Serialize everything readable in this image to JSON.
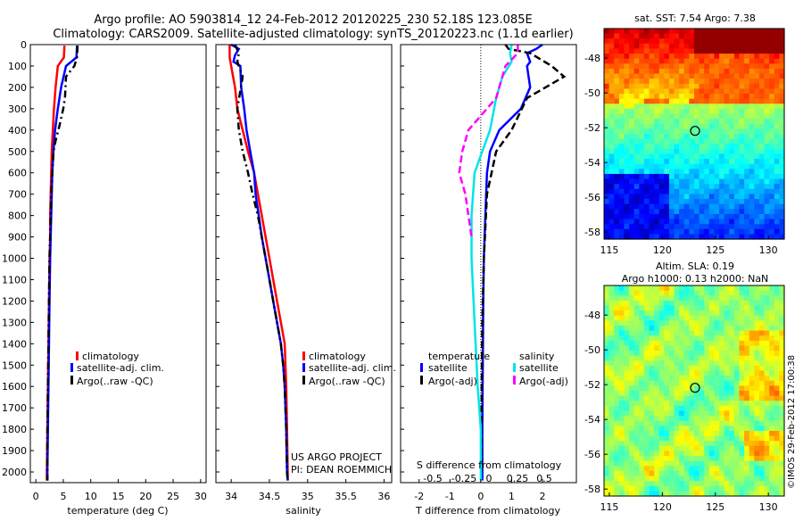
{
  "title_line1": "Argo profile: AO 5903814_12 24-Feb-2012 20120225_230 52.18S 123.085E",
  "title_line2": "Climatology: CARS2009. Satellite-adjusted climatology: synTS_20120223.nc (1.1d earlier)",
  "credit_line1": "US ARGO PROJECT",
  "credit_line2": "PI: DEAN ROEMMICH",
  "imos_stamp": "©IMOS 29-Feb-2012 17:00:38",
  "colors": {
    "climatology": "#ff0000",
    "satellite": "#0000ff",
    "argo": "#000000",
    "sat_salinity": "#00e5e5",
    "argo_salinity": "#ff00ff"
  },
  "chart_data": [
    {
      "type": "line",
      "xlabel": "temperature (deg C)",
      "ylabel": "",
      "xlim": [
        -1,
        31
      ],
      "ylim": [
        2050,
        0
      ],
      "xticks": [
        "0",
        "5",
        "10",
        "15",
        "20",
        "25",
        "30"
      ],
      "xtick_values": [
        0,
        5,
        10,
        15,
        20,
        25,
        30
      ],
      "yticks": [
        "0",
        "100",
        "200",
        "300",
        "400",
        "500",
        "600",
        "700",
        "800",
        "900",
        "1000",
        "1100",
        "1200",
        "1300",
        "1400",
        "1500",
        "1600",
        "1700",
        "1800",
        "1900",
        "2000"
      ],
      "legend": [
        "climatology",
        "satellite-adj. clim.",
        "Argo(..raw -QC)"
      ],
      "series": [
        {
          "name": "climatology",
          "color": "#ff0000",
          "dash": "",
          "points": [
            [
              5.2,
              5
            ],
            [
              5.1,
              60
            ],
            [
              4.0,
              100
            ],
            [
              3.6,
              200
            ],
            [
              3.3,
              300
            ],
            [
              3.1,
              400
            ],
            [
              2.9,
              500
            ],
            [
              2.8,
              600
            ],
            [
              2.7,
              700
            ],
            [
              2.6,
              800
            ],
            [
              2.6,
              900
            ],
            [
              2.5,
              1000
            ],
            [
              2.4,
              1200
            ],
            [
              2.3,
              1400
            ],
            [
              2.2,
              1600
            ],
            [
              2.1,
              1800
            ],
            [
              2.0,
              2000
            ],
            [
              2.0,
              2040
            ]
          ]
        },
        {
          "name": "satellite-adj. clim.",
          "color": "#0000ff",
          "dash": "",
          "points": [
            [
              7.5,
              5
            ],
            [
              7.4,
              60
            ],
            [
              5.5,
              100
            ],
            [
              4.6,
              200
            ],
            [
              4.0,
              300
            ],
            [
              3.5,
              400
            ],
            [
              3.2,
              500
            ],
            [
              3.0,
              600
            ],
            [
              2.9,
              700
            ],
            [
              2.8,
              800
            ],
            [
              2.7,
              900
            ],
            [
              2.6,
              1000
            ],
            [
              2.5,
              1200
            ],
            [
              2.4,
              1400
            ],
            [
              2.3,
              1600
            ],
            [
              2.2,
              1800
            ],
            [
              2.1,
              2000
            ],
            [
              2.1,
              2040
            ]
          ]
        },
        {
          "name": "Argo(..raw -QC)",
          "color": "#000000",
          "dash": "8 4 2 4",
          "points": [
            [
              7.6,
              5
            ],
            [
              7.5,
              60
            ],
            [
              7.0,
              100
            ],
            [
              5.5,
              150
            ],
            [
              5.3,
              250
            ],
            [
              5.0,
              300
            ],
            [
              4.3,
              380
            ],
            [
              3.6,
              450
            ],
            [
              3.2,
              500
            ],
            [
              3.0,
              600
            ],
            [
              2.8,
              700
            ],
            [
              2.7,
              800
            ],
            [
              2.6,
              900
            ],
            [
              2.5,
              1000
            ],
            [
              2.4,
              1200
            ],
            [
              2.3,
              1400
            ],
            [
              2.2,
              1600
            ],
            [
              2.1,
              1800
            ],
            [
              2.1,
              2000
            ],
            [
              2.1,
              2040
            ]
          ]
        }
      ]
    },
    {
      "type": "line",
      "xlabel": "salinity",
      "ylabel": "",
      "xlim": [
        33.8,
        36.1
      ],
      "ylim": [
        2050,
        0
      ],
      "xticks": [
        "34",
        "34.5",
        "35",
        "35.5",
        "36"
      ],
      "xtick_values": [
        34,
        34.5,
        35,
        35.5,
        36
      ],
      "legend": [
        "climatology",
        "satellite-adj. clim.",
        "Argo(..raw -QC)"
      ],
      "series": [
        {
          "name": "climatology",
          "color": "#ff0000",
          "dash": "",
          "points": [
            [
              33.98,
              0
            ],
            [
              33.98,
              60
            ],
            [
              34.0,
              100
            ],
            [
              34.05,
              200
            ],
            [
              34.08,
              300
            ],
            [
              34.15,
              400
            ],
            [
              34.22,
              500
            ],
            [
              34.3,
              600
            ],
            [
              34.35,
              700
            ],
            [
              34.4,
              800
            ],
            [
              34.45,
              900
            ],
            [
              34.5,
              1000
            ],
            [
              34.55,
              1100
            ],
            [
              34.6,
              1200
            ],
            [
              34.65,
              1300
            ],
            [
              34.7,
              1400
            ],
            [
              34.72,
              1600
            ],
            [
              34.73,
              1800
            ],
            [
              34.74,
              2000
            ],
            [
              34.74,
              2040
            ]
          ]
        },
        {
          "name": "satellite-adj. clim.",
          "color": "#0000ff",
          "dash": "",
          "points": [
            [
              34.0,
              0
            ],
            [
              34.1,
              20
            ],
            [
              34.05,
              50
            ],
            [
              34.03,
              80
            ],
            [
              34.12,
              100
            ],
            [
              34.13,
              200
            ],
            [
              34.17,
              300
            ],
            [
              34.2,
              400
            ],
            [
              34.25,
              500
            ],
            [
              34.3,
              600
            ],
            [
              34.32,
              700
            ],
            [
              34.36,
              800
            ],
            [
              34.4,
              900
            ],
            [
              34.45,
              1000
            ],
            [
              34.5,
              1100
            ],
            [
              34.55,
              1200
            ],
            [
              34.6,
              1300
            ],
            [
              34.65,
              1400
            ],
            [
              34.68,
              1500
            ],
            [
              34.7,
              1600
            ],
            [
              34.72,
              1800
            ],
            [
              34.73,
              2000
            ],
            [
              34.74,
              2040
            ]
          ]
        },
        {
          "name": "Argo(..raw -QC)",
          "color": "#000000",
          "dash": "8 4 2 4",
          "points": [
            [
              34.05,
              0
            ],
            [
              34.1,
              40
            ],
            [
              34.08,
              80
            ],
            [
              34.15,
              150
            ],
            [
              34.08,
              300
            ],
            [
              34.1,
              400
            ],
            [
              34.15,
              500
            ],
            [
              34.22,
              600
            ],
            [
              34.28,
              700
            ],
            [
              34.35,
              800
            ],
            [
              34.4,
              900
            ],
            [
              34.45,
              1000
            ],
            [
              34.5,
              1100
            ],
            [
              34.55,
              1200
            ],
            [
              34.6,
              1300
            ],
            [
              34.65,
              1400
            ],
            [
              34.68,
              1500
            ],
            [
              34.7,
              1600
            ],
            [
              34.72,
              1800
            ],
            [
              34.73,
              2000
            ],
            [
              34.74,
              2040
            ]
          ]
        }
      ]
    },
    {
      "type": "line",
      "xlabel": "T difference from climatology",
      "xlabel2": "S difference from climatology",
      "xlim": [
        -2.6,
        3.1
      ],
      "ylim": [
        2050,
        0
      ],
      "xticks": [
        "-2",
        "-1",
        "0",
        "1",
        "2"
      ],
      "xtick_values": [
        -2,
        -1,
        0,
        1,
        2
      ],
      "xticks2": [
        "-0.5",
        "-0.25",
        "0",
        "0.25",
        "0.5"
      ],
      "legend_headers": [
        "temperature",
        "salinity"
      ],
      "legend": [
        "satellite",
        "Argo(-adj)",
        "satellite",
        "Argo(-adj)"
      ],
      "series": [
        {
          "name": "satellite",
          "group": "temperature",
          "color": "#0000ff",
          "dash": "",
          "points": [
            [
              2.0,
              0
            ],
            [
              1.8,
              20
            ],
            [
              1.5,
              40
            ],
            [
              1.6,
              80
            ],
            [
              1.5,
              100
            ],
            [
              1.6,
              200
            ],
            [
              1.3,
              300
            ],
            [
              0.6,
              400
            ],
            [
              0.3,
              500
            ],
            [
              0.2,
              600
            ],
            [
              0.15,
              800
            ],
            [
              0.1,
              1000
            ],
            [
              0.08,
              1200
            ],
            [
              0.07,
              1400
            ],
            [
              0.06,
              1600
            ],
            [
              0.05,
              1800
            ],
            [
              0.05,
              2000
            ],
            [
              0.05,
              2040
            ]
          ]
        },
        {
          "name": "Argo(-adj)",
          "group": "temperature",
          "color": "#000000",
          "dash": "8 4",
          "points": [
            [
              0.8,
              0
            ],
            [
              0.9,
              20
            ],
            [
              1.6,
              40
            ],
            [
              2.3,
              100
            ],
            [
              2.7,
              150
            ],
            [
              1.5,
              250
            ],
            [
              1.0,
              400
            ],
            [
              0.5,
              500
            ],
            [
              0.2,
              700
            ],
            [
              0.1,
              1000
            ],
            [
              0.05,
              1300
            ],
            [
              0.03,
              1600
            ],
            [
              0.02,
              2000
            ]
          ]
        },
        {
          "name": "satellite",
          "group": "salinity",
          "color": "#00e5e5",
          "dash": "",
          "points": [
            [
              1.0,
              0
            ],
            [
              0.95,
              40
            ],
            [
              1.0,
              80
            ],
            [
              0.7,
              150
            ],
            [
              0.5,
              250
            ],
            [
              0.3,
              400
            ],
            [
              -0.2,
              600
            ],
            [
              -0.3,
              800
            ],
            [
              -0.3,
              1000
            ],
            [
              -0.2,
              1300
            ],
            [
              -0.1,
              1600
            ],
            [
              0.0,
              1800
            ],
            [
              0.0,
              2040
            ]
          ]
        },
        {
          "name": "Argo(-adj)",
          "group": "salinity",
          "color": "#ff00ff",
          "dash": "8 4",
          "points": [
            [
              1.2,
              0
            ],
            [
              1.2,
              40
            ],
            [
              0.8,
              100
            ],
            [
              0.5,
              250
            ],
            [
              -0.4,
              400
            ],
            [
              -0.6,
              500
            ],
            [
              -0.7,
              600
            ],
            [
              -0.5,
              700
            ],
            [
              -0.3,
              900
            ]
          ]
        }
      ]
    },
    {
      "type": "heatmap",
      "title": "sat. SST: 7.54 Argo: 7.38",
      "xticks": [
        "115",
        "120",
        "125",
        "130"
      ],
      "xtick_values": [
        115,
        120,
        125,
        130
      ],
      "yticks": [
        "-48",
        "-50",
        "-52",
        "-54",
        "-56",
        "-58"
      ],
      "ytick_values": [
        -48,
        -50,
        -52,
        -54,
        -56,
        -58
      ],
      "xlim": [
        114.5,
        131.5
      ],
      "ylim": [
        -58.4,
        -46.3
      ],
      "marker": {
        "lon": 123.085,
        "lat": -52.18
      }
    },
    {
      "type": "heatmap",
      "title_line1": "Altim. SLA: 0.19",
      "title_line2": "Argo h1000: 0.13 h2000: NaN",
      "xticks": [
        "115",
        "120",
        "125",
        "130"
      ],
      "xtick_values": [
        115,
        120,
        125,
        130
      ],
      "yticks": [
        "-48",
        "-50",
        "-52",
        "-54",
        "-56",
        "-58"
      ],
      "ytick_values": [
        -48,
        -50,
        -52,
        -54,
        -56,
        -58
      ],
      "xlim": [
        114.5,
        131.5
      ],
      "ylim": [
        -58.4,
        -46.3
      ],
      "marker": {
        "lon": 123.085,
        "lat": -52.18
      }
    }
  ]
}
